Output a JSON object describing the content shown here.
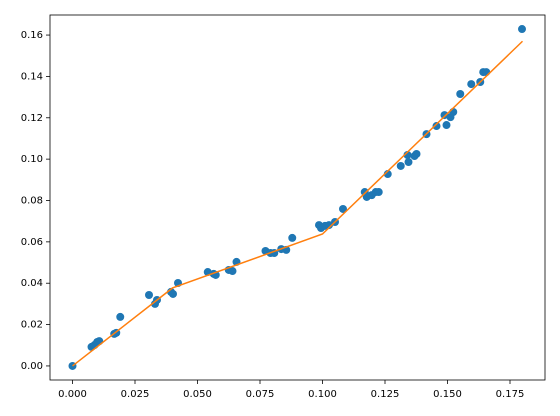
{
  "chart_data": {
    "type": "scatter",
    "xlim": [
      -0.009,
      0.189
    ],
    "ylim": [
      -0.0068,
      0.1697
    ],
    "xticks": [
      {
        "value": 0,
        "label": "0.000"
      },
      {
        "value": 0.025,
        "label": "0.025"
      },
      {
        "value": 0.05,
        "label": "0.050"
      },
      {
        "value": 0.075,
        "label": "0.075"
      },
      {
        "value": 0.1,
        "label": "0.100"
      },
      {
        "value": 0.125,
        "label": "0.125"
      },
      {
        "value": 0.15,
        "label": "0.150"
      },
      {
        "value": 0.175,
        "label": "0.175"
      }
    ],
    "yticks": [
      {
        "value": 0,
        "label": "0.00"
      },
      {
        "value": 0.02,
        "label": "0.02"
      },
      {
        "value": 0.04,
        "label": "0.04"
      },
      {
        "value": 0.06,
        "label": "0.06"
      },
      {
        "value": 0.08,
        "label": "0.08"
      },
      {
        "value": 0.1,
        "label": "0.10"
      },
      {
        "value": 0.12,
        "label": "0.12"
      },
      {
        "value": 0.14,
        "label": "0.14"
      },
      {
        "value": 0.16,
        "label": "0.16"
      }
    ],
    "series": [
      {
        "color": "#1f77b4",
        "style": "markers",
        "x": [
          0,
          0.0076,
          0.0088,
          0.0099,
          0.0107,
          0.0167,
          0.0175,
          0.0191,
          0.0306,
          0.033,
          0.0338,
          0.0394,
          0.0402,
          0.0422,
          0.0541,
          0.0565,
          0.0573,
          0.0625,
          0.064,
          0.0656,
          0.0772,
          0.0792,
          0.0807,
          0.0835,
          0.0855,
          0.0879,
          0.0986,
          0.0994,
          0.101,
          0.1026,
          0.105,
          0.1082,
          0.1169,
          0.1177,
          0.1197,
          0.1213,
          0.1225,
          0.1261,
          0.1313,
          0.134,
          0.1344,
          0.1368,
          0.1376,
          0.1416,
          0.1456,
          0.1488,
          0.1496,
          0.1512,
          0.1523,
          0.1551,
          0.1595,
          0.1631,
          0.1643,
          0.1655,
          0.1798
        ],
        "values": [
          0,
          0.0092,
          0.0101,
          0.0116,
          0.012,
          0.0155,
          0.016,
          0.0237,
          0.0343,
          0.03,
          0.0319,
          0.0358,
          0.0348,
          0.0401,
          0.0454,
          0.0445,
          0.044,
          0.0464,
          0.0459,
          0.0503,
          0.0556,
          0.0546,
          0.0546,
          0.0565,
          0.0561,
          0.0619,
          0.0681,
          0.0667,
          0.0677,
          0.0681,
          0.0696,
          0.0759,
          0.0841,
          0.0817,
          0.0826,
          0.0841,
          0.0841,
          0.0928,
          0.0967,
          0.102,
          0.0986,
          0.1015,
          0.1025,
          0.1121,
          0.116,
          0.1213,
          0.1165,
          0.1203,
          0.1228,
          0.1315,
          0.1363,
          0.1373,
          0.1421,
          0.1421,
          0.1629
        ]
      },
      {
        "color": "#ff7f0e",
        "style": "line",
        "x": [
          0,
          0.04,
          0.1,
          0.18
        ],
        "values": [
          0,
          0.0377,
          0.0638,
          0.157
        ]
      }
    ]
  }
}
